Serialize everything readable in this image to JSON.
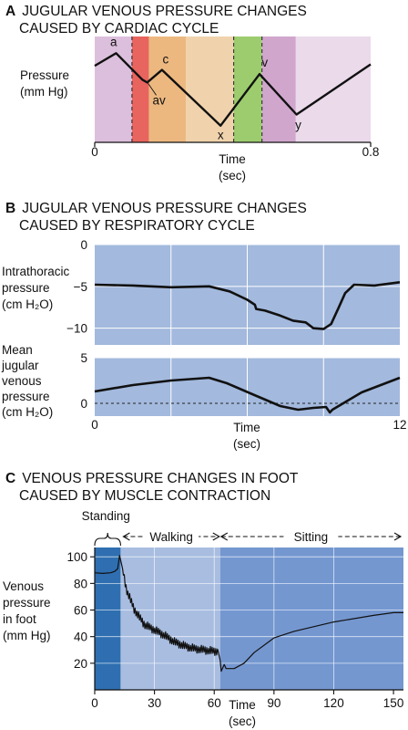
{
  "chart_data": [
    {
      "type": "line",
      "panel_letter": "A",
      "title_lines": [
        "JUGULAR VENOUS PRESSURE CHANGES",
        "CAUSED BY CARDIAC CYCLE"
      ],
      "ylabel_lines": [
        "Pressure",
        "(mm Hg)"
      ],
      "xlabel_lines": [
        "Time",
        "(sec)"
      ],
      "xlim": [
        0,
        0.8
      ],
      "x_tick_labels": [
        "0",
        "0.8"
      ],
      "x_ticks": [
        0,
        0.8
      ],
      "phase_bands": [
        {
          "x0": 0.0,
          "x1": 0.108,
          "color": "#dcbfdc"
        },
        {
          "x0": 0.108,
          "x1": 0.157,
          "color": "#e8645e"
        },
        {
          "x0": 0.157,
          "x1": 0.264,
          "color": "#ecb880"
        },
        {
          "x0": 0.264,
          "x1": 0.403,
          "color": "#f0d3ac"
        },
        {
          "x0": 0.403,
          "x1": 0.485,
          "color": "#9ccc6e"
        },
        {
          "x0": 0.485,
          "x1": 0.583,
          "color": "#d0a6cd"
        },
        {
          "x0": 0.583,
          "x1": 0.8,
          "color": "#eadaea"
        }
      ],
      "series": [
        {
          "values": [
            [
              0.0,
              4.3
            ],
            [
              0.062,
              5.2
            ],
            [
              0.138,
              3.3
            ],
            [
              0.152,
              3.1
            ],
            [
              0.195,
              4.0
            ],
            [
              0.365,
              0.0
            ],
            [
              0.478,
              3.7
            ],
            [
              0.585,
              0.8
            ],
            [
              0.8,
              4.4
            ]
          ]
        }
      ],
      "wave_labels": [
        {
          "text": "a",
          "x": 0.06,
          "y": 5.2
        },
        {
          "text": "av",
          "x": 0.16,
          "y": 3.1
        },
        {
          "text": "c",
          "x": 0.195,
          "y": 4.0
        },
        {
          "text": "x",
          "x": 0.365,
          "y": 0.0
        },
        {
          "text": "v",
          "x": 0.485,
          "y": 3.7
        },
        {
          "text": "y",
          "x": 0.59,
          "y": 0.8
        }
      ]
    },
    {
      "type": "line",
      "panel_letter": "B",
      "title_lines": [
        "JUGULAR VENOUS PRESSURE CHANGES",
        "CAUSED BY RESPIRATORY CYCLE"
      ],
      "xlabel_lines": [
        "Time",
        "(sec)"
      ],
      "xlim": [
        0,
        12
      ],
      "x_tick_labels": [
        "0",
        "12"
      ],
      "x_ticks": [
        0,
        12
      ],
      "subplots": [
        {
          "ylabel_lines": [
            "Intrathoracic",
            "pressure",
            "(cm H₂O)"
          ],
          "ylim": [
            -12,
            0
          ],
          "y_ticks": [
            0,
            -5,
            -10
          ],
          "y_tick_labels": [
            "0",
            "−5",
            "−10"
          ],
          "series": [
            {
              "values": [
                [
                  0.0,
                  -4.8
                ],
                [
                  1.5,
                  -4.9
                ],
                [
                  3.0,
                  -5.1
                ],
                [
                  4.5,
                  -5.0
                ],
                [
                  5.3,
                  -5.6
                ],
                [
                  6.0,
                  -6.6
                ],
                [
                  6.3,
                  -7.2
                ],
                [
                  6.35,
                  -7.7
                ],
                [
                  6.7,
                  -7.9
                ],
                [
                  7.3,
                  -8.5
                ],
                [
                  7.8,
                  -9.1
                ],
                [
                  8.3,
                  -9.3
                ],
                [
                  8.6,
                  -10.0
                ],
                [
                  9.0,
                  -10.1
                ],
                [
                  9.3,
                  -9.5
                ],
                [
                  9.6,
                  -7.5
                ],
                [
                  9.85,
                  -5.8
                ],
                [
                  10.2,
                  -4.8
                ],
                [
                  11.0,
                  -4.9
                ],
                [
                  12.0,
                  -4.5
                ]
              ]
            }
          ],
          "grid": true
        },
        {
          "ylabel_lines": [
            "Mean",
            "jugular",
            "venous",
            "pressure",
            "(cm H₂O)"
          ],
          "ylim": [
            -1.4,
            5
          ],
          "y_ticks": [
            5,
            0
          ],
          "y_tick_labels": [
            "5",
            "0"
          ],
          "reference_line": 0,
          "series": [
            {
              "values": [
                [
                  0.0,
                  1.3
                ],
                [
                  1.5,
                  2.0
                ],
                [
                  3.0,
                  2.5
                ],
                [
                  4.5,
                  2.8
                ],
                [
                  5.2,
                  2.2
                ],
                [
                  6.2,
                  1.0
                ],
                [
                  7.3,
                  -0.3
                ],
                [
                  8.0,
                  -0.7
                ],
                [
                  8.6,
                  -0.5
                ],
                [
                  9.1,
                  -0.4
                ],
                [
                  9.25,
                  -1.0
                ],
                [
                  9.35,
                  -0.7
                ],
                [
                  10.5,
                  1.2
                ],
                [
                  12.0,
                  2.8
                ]
              ]
            }
          ],
          "grid": true
        }
      ]
    },
    {
      "type": "line",
      "panel_letter": "C",
      "title_lines": [
        "VENOUS PRESSURE CHANGES IN FOOT",
        "CAUSED BY MUSCLE CONTRACTION"
      ],
      "ylabel_lines": [
        "Venous",
        "pressure",
        "in foot",
        "(mm Hg)"
      ],
      "xlabel_lines": [
        "Time",
        "(sec)"
      ],
      "xlim": [
        0,
        155
      ],
      "ylim": [
        0,
        107
      ],
      "x_ticks": [
        0,
        30,
        60,
        90,
        120,
        150
      ],
      "x_tick_labels": [
        "0",
        "30",
        "60",
        "90",
        "120",
        "150"
      ],
      "y_ticks": [
        20,
        40,
        60,
        80,
        100
      ],
      "y_tick_labels": [
        "20",
        "40",
        "60",
        "80",
        "100"
      ],
      "phases": [
        {
          "label": "Standing",
          "x0": 0,
          "x1": 13,
          "color": "#2f6fb1"
        },
        {
          "label": "Walking",
          "x0": 13,
          "x1": 63,
          "color": "#a8bde0"
        },
        {
          "label": "Sitting",
          "x0": 63,
          "x1": 155,
          "color": "#7497d0"
        }
      ],
      "series": [
        {
          "values": [
            [
              0.0,
              88.0
            ],
            [
              4.0,
              87.5
            ],
            [
              8.0,
              88.0
            ],
            [
              10.0,
              89.0
            ],
            [
              11.5,
              91.0
            ],
            [
              12.5,
              101.0
            ],
            [
              14.0,
              91.0
            ],
            [
              16.0,
              75.0
            ],
            [
              20.0,
              60.0
            ],
            [
              25.0,
              49.0
            ],
            [
              30.0,
              45.0
            ],
            [
              35.0,
              41.0
            ],
            [
              40.0,
              36.0
            ],
            [
              45.0,
              33.0
            ],
            [
              50.0,
              31.0
            ],
            [
              55.0,
              30.0
            ],
            [
              60.0,
              29.0
            ],
            [
              62.0,
              29.0
            ],
            [
              63.0,
              22.0
            ],
            [
              63.5,
              14.0
            ],
            [
              65.0,
              19.0
            ],
            [
              66.0,
              16.0
            ],
            [
              70.0,
              16.0
            ],
            [
              75.0,
              20.0
            ],
            [
              80.0,
              28.0
            ],
            [
              90.0,
              39.0
            ],
            [
              100.0,
              44.0
            ],
            [
              120.0,
              51.0
            ],
            [
              140.0,
              56.0
            ],
            [
              150.0,
              58.0
            ],
            [
              155.0,
              58.0
            ]
          ]
        }
      ],
      "grid": true
    }
  ]
}
